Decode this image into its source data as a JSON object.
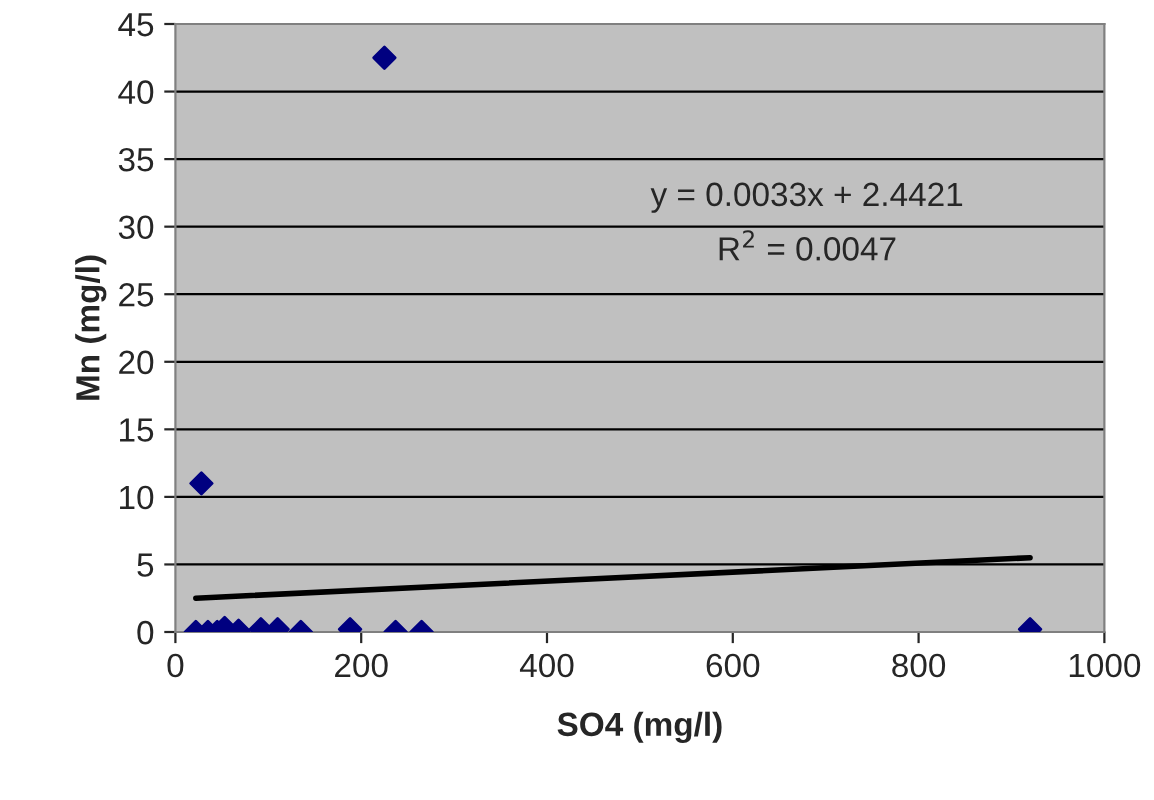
{
  "chart_data": {
    "type": "scatter",
    "xlabel": "SO4 (mg/l)",
    "ylabel": "Mn (mg/l)",
    "series": [
      {
        "color": "#000080",
        "marker": "diamond",
        "x": [
          22,
          28,
          35,
          45,
          53,
          68,
          92,
          110,
          135,
          188,
          225,
          237,
          265,
          920
        ],
        "values": [
          0,
          11,
          0,
          0,
          0.3,
          0.1,
          0.2,
          0.2,
          0,
          0.2,
          42.5,
          0,
          0,
          0.2
        ]
      },
      {
        "type": "line",
        "color": "#000000",
        "marker": "none",
        "line_style": "solid",
        "x": [
          22,
          920
        ],
        "values": [
          2.5,
          5.5
        ]
      }
    ],
    "annotations": [
      "y = 0.0033x + 2.4421",
      "R$^{2}$ = 0.0047"
    ],
    "xlim": [
      0,
      1000
    ],
    "xticks": [
      0,
      200,
      400,
      600,
      800,
      1000
    ],
    "ylim": [
      0,
      45
    ],
    "yticks": [
      0,
      5,
      10,
      15,
      20,
      25,
      30,
      35,
      40,
      45
    ],
    "grid": "y"
  }
}
